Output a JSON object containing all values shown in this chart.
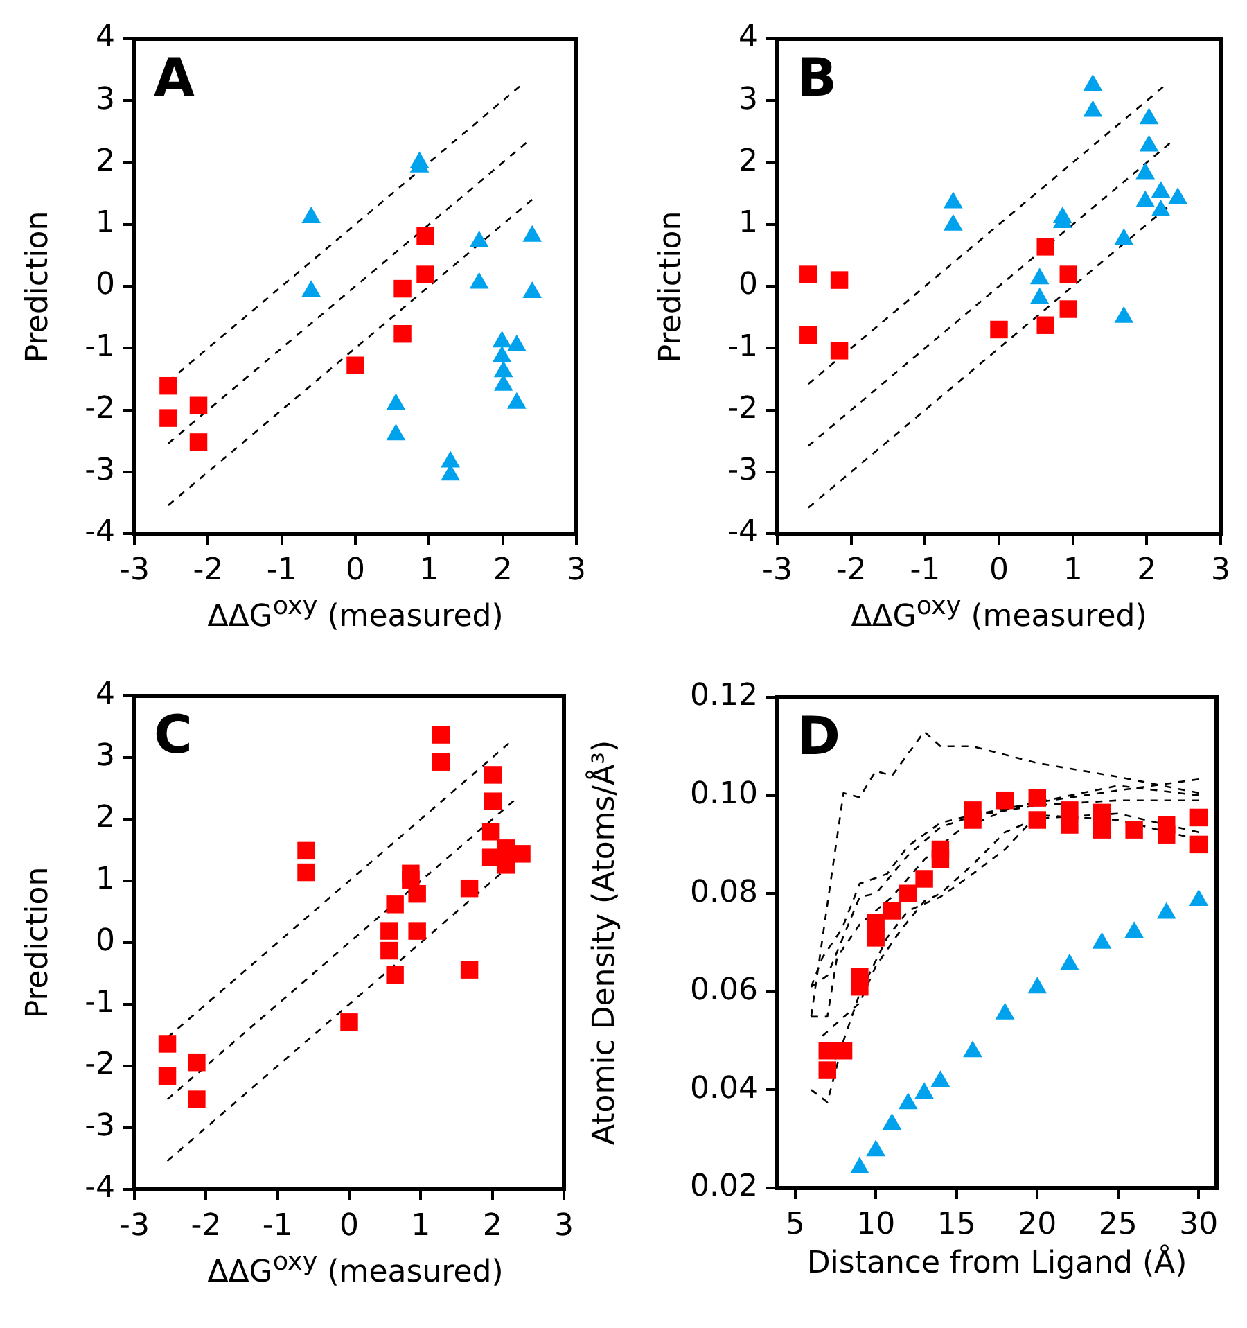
{
  "chart_data": [
    {
      "type": "scatter",
      "title": "A",
      "xlabel": "ΔΔG$^{oxy}$ (measured)",
      "ylabel": "Prediction",
      "xlim": [
        -3,
        3
      ],
      "ylim": [
        -4,
        4
      ],
      "xticks": [
        -3,
        -2,
        -1,
        0,
        1,
        2,
        3
      ],
      "yticks": [
        -4,
        -3,
        -2,
        -1,
        0,
        1,
        2,
        3,
        4
      ],
      "series": [
        {
          "type": "scatter",
          "color": "#ff0000",
          "marker": "square",
          "x": [
            -2.54,
            -2.54,
            -2.13,
            -2.13,
            0.0,
            0.64,
            0.64,
            0.95,
            0.95
          ],
          "values": [
            -1.61,
            -2.13,
            -1.93,
            -2.52,
            -1.28,
            -0.04,
            -0.77,
            0.81,
            0.19
          ]
        },
        {
          "type": "scatter",
          "color": "#00a2ed",
          "marker": "triangle",
          "x": [
            -0.6,
            -0.6,
            0.87,
            0.87,
            0.55,
            0.55,
            1.29,
            1.29,
            1.68,
            1.68,
            2.4,
            2.4,
            1.99,
            2.19,
            1.99,
            2.01,
            2.01,
            2.19
          ],
          "values": [
            1.11,
            -0.08,
            2.0,
            1.93,
            -1.91,
            -2.4,
            -2.84,
            -3.05,
            0.72,
            0.05,
            0.81,
            -0.1,
            -0.9,
            -0.96,
            -1.14,
            -1.38,
            -1.6,
            -1.89
          ]
        },
        {
          "type": "line",
          "color": "#000000",
          "marker": "none",
          "line_style": "dashed",
          "x": [
            -2.54,
            2.23
          ],
          "values": [
            -1.54,
            3.23
          ]
        },
        {
          "type": "line",
          "color": "#000000",
          "marker": "none",
          "line_style": "dashed",
          "x": [
            -2.54,
            2.32
          ],
          "values": [
            -2.54,
            2.32
          ]
        },
        {
          "type": "line",
          "color": "#000000",
          "marker": "none",
          "line_style": "dashed",
          "x": [
            -2.54,
            2.4
          ],
          "values": [
            -3.54,
            1.4
          ]
        }
      ]
    },
    {
      "type": "scatter",
      "title": "B",
      "xlabel": "ΔΔG$^{oxy}$ (measured)",
      "ylabel": "Prediction",
      "xlim": [
        -3,
        3
      ],
      "ylim": [
        -4,
        4
      ],
      "xticks": [
        -3,
        -2,
        -1,
        0,
        1,
        2,
        3
      ],
      "yticks": [
        -4,
        -3,
        -2,
        -1,
        0,
        1,
        2,
        3,
        4
      ],
      "series": [
        {
          "type": "scatter",
          "color": "#ff0000",
          "marker": "square",
          "x": [
            -2.58,
            -2.58,
            -2.16,
            -2.16,
            0.0,
            0.63,
            0.63,
            0.94,
            0.94
          ],
          "values": [
            0.19,
            -0.79,
            0.1,
            -1.04,
            -0.7,
            0.64,
            -0.63,
            0.19,
            -0.37
          ]
        },
        {
          "type": "scatter",
          "color": "#00a2ed",
          "marker": "triangle",
          "x": [
            1.27,
            1.27,
            -0.62,
            -0.62,
            0.86,
            0.86,
            0.55,
            0.55,
            1.69,
            1.69,
            2.03,
            2.03,
            1.98,
            1.98,
            2.19,
            2.19,
            2.42
          ],
          "values": [
            3.25,
            2.83,
            1.35,
            0.99,
            1.11,
            1.03,
            0.12,
            -0.2,
            0.76,
            -0.5,
            2.71,
            2.27,
            1.82,
            1.37,
            1.52,
            1.22,
            1.42
          ]
        },
        {
          "type": "line",
          "color": "#000000",
          "marker": "none",
          "line_style": "dashed",
          "x": [
            -2.58,
            2.22
          ],
          "values": [
            -1.58,
            3.22
          ]
        },
        {
          "type": "line",
          "color": "#000000",
          "marker": "none",
          "line_style": "dashed",
          "x": [
            -2.58,
            2.31
          ],
          "values": [
            -2.58,
            2.31
          ]
        },
        {
          "type": "line",
          "color": "#000000",
          "marker": "none",
          "line_style": "dashed",
          "x": [
            -2.58,
            2.42
          ],
          "values": [
            -3.58,
            1.42
          ]
        }
      ]
    },
    {
      "type": "scatter",
      "title": "C",
      "xlabel": "ΔΔG$^{oxy}$ (measured)",
      "ylabel": "Prediction",
      "xlim": [
        -3,
        3
      ],
      "ylim": [
        -4,
        4
      ],
      "xticks": [
        -3,
        -2,
        -1,
        0,
        1,
        2,
        3
      ],
      "yticks": [
        -4,
        -3,
        -2,
        -1,
        0,
        1,
        2,
        3,
        4
      ],
      "series": [
        {
          "type": "scatter",
          "color": "#ff0000",
          "marker": "square",
          "x": [
            -2.54,
            -2.54,
            -2.13,
            -2.13,
            0.0,
            -0.6,
            -0.6,
            1.28,
            1.28,
            0.64,
            0.56,
            0.56,
            0.64,
            0.86,
            0.86,
            0.95,
            0.95,
            1.68,
            1.68,
            2.01,
            2.01,
            1.98,
            1.98,
            2.19,
            2.19,
            2.41
          ],
          "values": [
            -1.64,
            -2.16,
            -1.94,
            -2.54,
            -1.29,
            1.49,
            1.14,
            3.37,
            2.93,
            0.62,
            0.19,
            -0.13,
            -0.52,
            1.12,
            1.02,
            0.79,
            0.19,
            0.88,
            -0.44,
            2.72,
            2.29,
            1.8,
            1.38,
            1.53,
            1.26,
            1.44
          ]
        },
        {
          "type": "line",
          "color": "#000000",
          "marker": "none",
          "line_style": "dashed",
          "x": [
            -2.54,
            2.23
          ],
          "values": [
            -1.54,
            3.23
          ]
        },
        {
          "type": "line",
          "color": "#000000",
          "marker": "none",
          "line_style": "dashed",
          "x": [
            -2.54,
            2.3
          ],
          "values": [
            -2.54,
            2.3
          ]
        },
        {
          "type": "line",
          "color": "#000000",
          "marker": "none",
          "line_style": "dashed",
          "x": [
            -2.54,
            2.41
          ],
          "values": [
            -3.54,
            1.41
          ]
        }
      ]
    },
    {
      "type": "scatter",
      "title": "D",
      "xlabel": "Distance from Ligand (Å)",
      "ylabel": "Atomic Density (Atoms/Å³)",
      "xlim": [
        3.9,
        31.1
      ],
      "ylim": [
        0.02,
        0.12
      ],
      "xticks": [
        5,
        10,
        15,
        20,
        25,
        30
      ],
      "yticks": [
        0.02,
        0.04,
        0.06,
        0.08,
        {
          "value": 0.1,
          "label": "0.10"
        },
        0.12
      ],
      "series": [
        {
          "type": "line",
          "color": "#000000",
          "marker": "none",
          "line_style": "dashed",
          "x": [
            6,
            8,
            9,
            10,
            11,
            13,
            14,
            16,
            20,
            25,
            30
          ],
          "values": [
            0.055,
            0.1005,
            0.0996,
            0.105,
            0.104,
            0.113,
            0.11,
            0.11,
            0.1066,
            0.1038,
            0.1005
          ]
        },
        {
          "type": "line",
          "color": "#000000",
          "marker": "none",
          "line_style": "dashed",
          "x": [
            6,
            7,
            8,
            9,
            10.7,
            12,
            14,
            16,
            18,
            20,
            25,
            30
          ],
          "values": [
            0.04,
            0.0375,
            0.05,
            0.0596,
            0.071,
            0.0765,
            0.0793,
            0.084,
            0.089,
            0.096,
            0.095,
            0.091
          ]
        },
        {
          "type": "line",
          "color": "#000000",
          "marker": "none",
          "line_style": "dashed",
          "x": [
            6,
            7,
            8,
            9,
            10,
            12,
            14,
            16,
            20,
            25,
            30
          ],
          "values": [
            0.061,
            0.0633,
            0.0713,
            0.0793,
            0.08,
            0.0878,
            0.0935,
            0.0958,
            0.098,
            0.099,
            0.099
          ]
        },
        {
          "type": "line",
          "color": "#000000",
          "marker": "none",
          "line_style": "dashed",
          "x": [
            6,
            7,
            7.6,
            9,
            11,
            13,
            15,
            18,
            20,
            25,
            30
          ],
          "values": [
            0.0549,
            0.0549,
            0.067,
            0.0737,
            0.0793,
            0.0869,
            0.0925,
            0.097,
            0.0986,
            0.101,
            0.1033
          ]
        },
        {
          "type": "line",
          "color": "#000000",
          "marker": "none",
          "line_style": "dashed",
          "x": [
            6,
            6.7,
            7.9,
            9,
            10.7,
            12,
            14,
            16,
            20,
            25,
            30
          ],
          "values": [
            0.061,
            0.067,
            0.0728,
            0.082,
            0.084,
            0.0897,
            0.0944,
            0.096,
            0.0986,
            0.102,
            0.1
          ]
        },
        {
          "type": "line",
          "color": "#000000",
          "marker": "none",
          "line_style": "dashed",
          "x": [
            6.7,
            9,
            10,
            11.6,
            13,
            14,
            16,
            18,
            20,
            25,
            30
          ],
          "values": [
            0.051,
            0.0577,
            0.0652,
            0.0728,
            0.0784,
            0.08,
            0.0859,
            0.0925,
            0.0953,
            0.0963,
            0.0925
          ]
        },
        {
          "type": "scatter",
          "color": "#ff0000",
          "marker": "square",
          "x": [
            7,
            7,
            8,
            9,
            9,
            10,
            10,
            11,
            12,
            13,
            14,
            14,
            16,
            16,
            18,
            20,
            20,
            22,
            22,
            24,
            24,
            26,
            28,
            28,
            30,
            30
          ],
          "values": [
            0.048,
            0.044,
            0.048,
            0.063,
            0.061,
            0.074,
            0.071,
            0.0765,
            0.08,
            0.083,
            0.089,
            0.087,
            0.097,
            0.095,
            0.099,
            0.0995,
            0.095,
            0.097,
            0.094,
            0.0965,
            0.093,
            0.093,
            0.094,
            0.092,
            0.0955,
            0.09
          ]
        },
        {
          "type": "scatter",
          "color": "#00a2ed",
          "marker": "triangle",
          "x": [
            9,
            10,
            11,
            12,
            13,
            14,
            16,
            18,
            20,
            22,
            24,
            26,
            28,
            30
          ],
          "values": [
            0.0241,
            0.0276,
            0.033,
            0.0372,
            0.0393,
            0.0417,
            0.0478,
            0.0555,
            0.0608,
            0.0655,
            0.0699,
            0.0721,
            0.076,
            0.0786
          ]
        }
      ]
    }
  ]
}
